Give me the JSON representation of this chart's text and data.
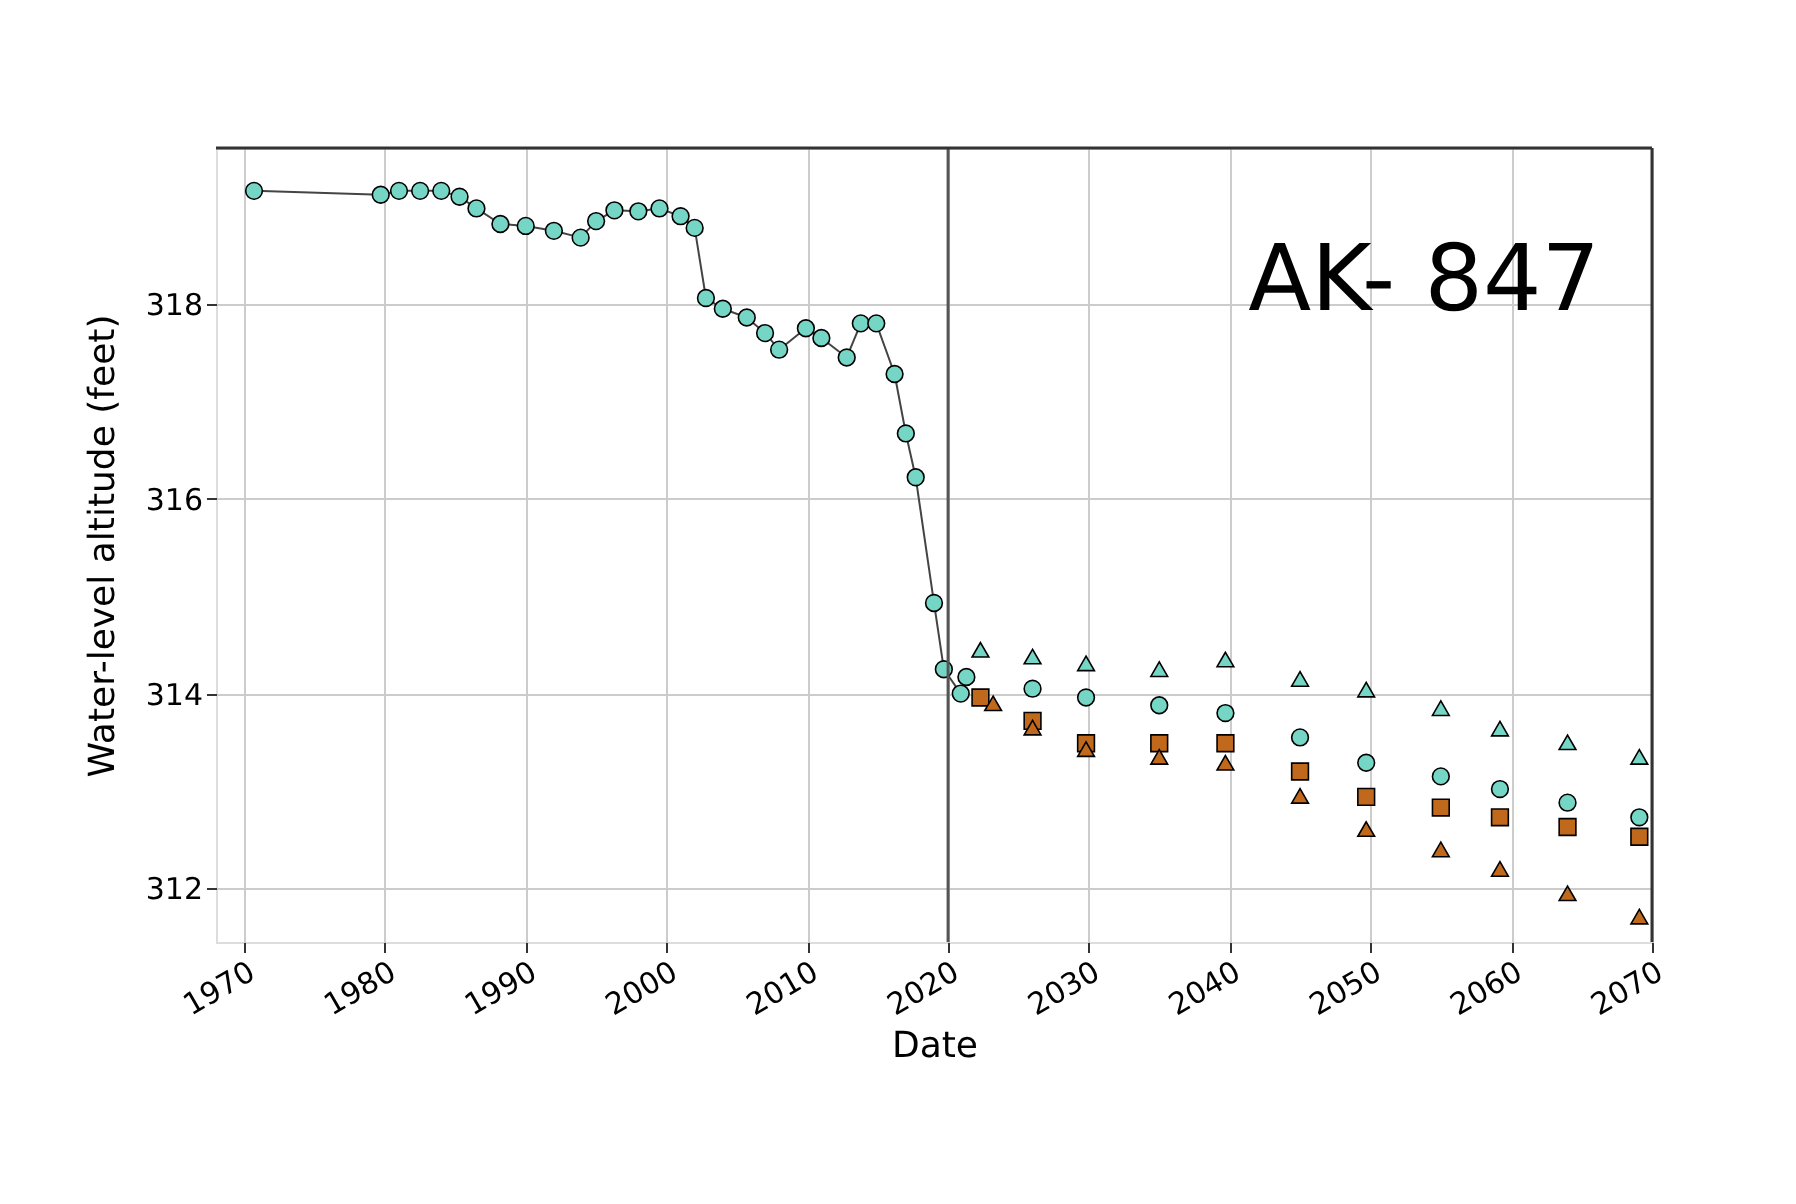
{
  "chart_data": {
    "type": "scatter",
    "xlabel": "Date",
    "ylabel": "Water-level altitude (feet)",
    "annotations": [
      "AK- 847"
    ],
    "xlim": [
      1968,
      2070
    ],
    "xticks": [
      1970,
      1980,
      1990,
      2000,
      2010,
      2020,
      2030,
      2040,
      2050,
      2060,
      2070
    ],
    "ylim": [
      311.45,
      319.6
    ],
    "yticks": [
      312,
      314,
      316,
      318
    ],
    "grid": true,
    "ref_lines": [
      {
        "axis": "x",
        "value": 2020,
        "color": "#555555"
      }
    ],
    "series": [
      {
        "type": "line",
        "marker": "circle",
        "color": "#76d6c6",
        "x": [
          1970.7,
          1979.7,
          1981,
          1982.5,
          1984,
          1985.3,
          1986.5,
          1988.2,
          1990,
          1992,
          1993.9,
          1995,
          1996.3,
          1998,
          1999.5,
          2001,
          2002,
          2002.8,
          2004,
          2005.7,
          2007,
          2008,
          2009.9,
          2011,
          2012.8,
          2013.8,
          2014.9,
          2016.2,
          2017,
          2017.7,
          2019,
          2019.7,
          2020.9
        ],
        "values": [
          319.16,
          319.12,
          319.16,
          319.16,
          319.16,
          319.1,
          318.98,
          318.82,
          318.8,
          318.75,
          318.68,
          318.85,
          318.96,
          318.95,
          318.98,
          318.9,
          318.78,
          318.06,
          317.95,
          317.86,
          317.7,
          317.53,
          317.75,
          317.65,
          317.45,
          317.8,
          317.8,
          317.28,
          316.67,
          316.22,
          314.93,
          314.25,
          314.0
        ]
      },
      {
        "marker": "triangle",
        "color": "#76d6c6",
        "x": [
          2022.3,
          2026,
          2029.8,
          2035,
          2039.7,
          2045,
          2049.7,
          2055,
          2059.2,
          2064,
          2069.1
        ],
        "values": [
          314.45,
          314.38,
          314.31,
          314.25,
          314.35,
          314.15,
          314.04,
          313.85,
          313.64,
          313.5,
          313.35
        ]
      },
      {
        "marker": "circle",
        "color": "#76d6c6",
        "x": [
          2021.3,
          2026,
          2029.8,
          2035,
          2039.7,
          2045,
          2049.7,
          2055,
          2059.2,
          2064,
          2069.1
        ],
        "values": [
          314.17,
          314.05,
          313.96,
          313.88,
          313.8,
          313.55,
          313.29,
          313.15,
          313.02,
          312.88,
          312.73
        ]
      },
      {
        "marker": "square",
        "color": "#c0681c",
        "x": [
          2022.3,
          2026,
          2029.8,
          2035,
          2039.7,
          2045,
          2049.7,
          2055,
          2059.2,
          2064,
          2069.1
        ],
        "values": [
          313.96,
          313.72,
          313.49,
          313.49,
          313.49,
          313.2,
          312.94,
          312.83,
          312.73,
          312.63,
          312.53
        ]
      },
      {
        "marker": "triangle",
        "color": "#c0681c",
        "x": [
          2023.2,
          2026,
          2029.8,
          2035,
          2039.7,
          2045,
          2049.7,
          2055,
          2059.2,
          2064,
          2069.1
        ],
        "values": [
          313.9,
          313.65,
          313.43,
          313.35,
          313.29,
          312.95,
          312.61,
          312.4,
          312.2,
          311.95,
          311.71
        ]
      }
    ]
  }
}
